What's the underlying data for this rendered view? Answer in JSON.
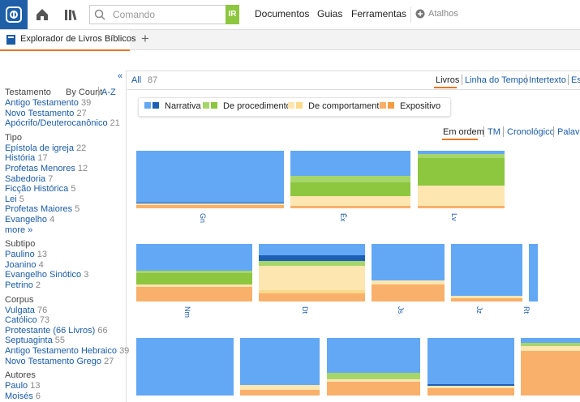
{
  "toolbar": {
    "search_placeholder": "Comando",
    "go": "IR",
    "menu": [
      "Documentos",
      "Guias",
      "Ferramentas"
    ],
    "shortcuts": "Atalhos"
  },
  "tab": {
    "title": "Explorador de Livros Bíblicos"
  },
  "sidebar": {
    "collapse": "«",
    "sort": [
      "By Count",
      "A-Z"
    ],
    "more": "more »",
    "groups": [
      {
        "title": "Testamento",
        "items": [
          {
            "label": "Antigo Testamento",
            "count": 39
          },
          {
            "label": "Novo Testamento",
            "count": 27
          },
          {
            "label": "Apócrifo/Deuterocanônico",
            "count": 21
          }
        ]
      },
      {
        "title": "Tipo",
        "items": [
          {
            "label": "Epístola de igreja",
            "count": 22
          },
          {
            "label": "História",
            "count": 17
          },
          {
            "label": "Profetas Menores",
            "count": 12
          },
          {
            "label": "Sabedoria",
            "count": 7
          },
          {
            "label": "Ficção Histórica",
            "count": 5
          },
          {
            "label": "Lei",
            "count": 5
          },
          {
            "label": "Profetas Maiores",
            "count": 5
          },
          {
            "label": "Evangelho",
            "count": 4
          }
        ]
      },
      {
        "title": "Subtipo",
        "items": [
          {
            "label": "Paulino",
            "count": 13
          },
          {
            "label": "Joanino",
            "count": 4
          },
          {
            "label": "Evangelho Sinótico",
            "count": 3
          },
          {
            "label": "Petrino",
            "count": 2
          }
        ]
      },
      {
        "title": "Corpus",
        "items": [
          {
            "label": "Vulgata",
            "count": 76
          },
          {
            "label": "Católico",
            "count": 73
          },
          {
            "label": "Protestante (66 Livros)",
            "count": 66
          },
          {
            "label": "Septuaginta",
            "count": 55
          },
          {
            "label": "Antigo Testamento Hebraico",
            "count": 39
          },
          {
            "label": "Novo Testamento Grego",
            "count": 27
          }
        ]
      },
      {
        "title": "Autores",
        "items": [
          {
            "label": "Paulo",
            "count": 13
          },
          {
            "label": "Moisés",
            "count": 6
          }
        ]
      }
    ]
  },
  "main": {
    "all": "All",
    "all_count": 87,
    "views": [
      "Livros",
      "Linha do Tempo",
      "Intertexto",
      "Est"
    ],
    "legend": [
      "Narrativa",
      "De procedimento",
      "De comportamento",
      "Expositivo"
    ],
    "orders": [
      "Em ordem",
      "TM",
      "Cronológico",
      "Palavra"
    ],
    "books": [
      "Gn",
      "Êx",
      "Lv",
      "Nm",
      "Dt",
      "Js",
      "Jz",
      "Rt"
    ]
  }
}
